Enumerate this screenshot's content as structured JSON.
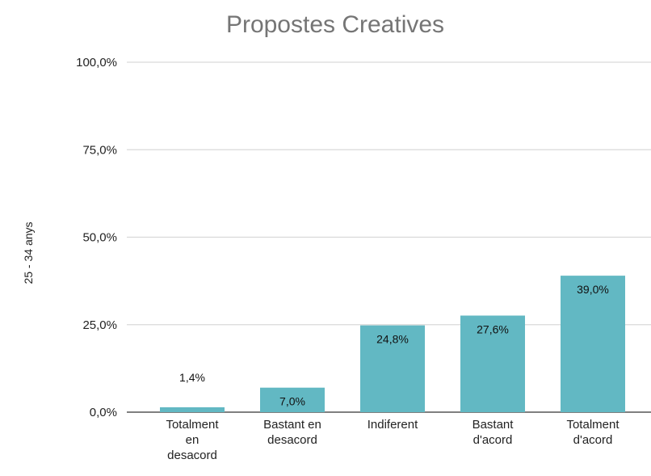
{
  "chart_data": {
    "type": "bar",
    "title": "Propostes Creatives",
    "ylabel": "25 - 34 anys",
    "xlabel": "",
    "ylim": [
      0,
      100
    ],
    "yticks": [
      "0,0%",
      "25,0%",
      "50,0%",
      "75,0%",
      "100,0%"
    ],
    "ytick_values": [
      0,
      25,
      50,
      75,
      100
    ],
    "categories": [
      [
        "Totalment",
        "en",
        "desacord"
      ],
      [
        "Bastant en",
        "desacord"
      ],
      [
        "Indiferent"
      ],
      [
        "Bastant",
        "d'acord"
      ],
      [
        "Totalment",
        "d'acord"
      ]
    ],
    "values": [
      1.4,
      7.0,
      24.8,
      27.6,
      39.0
    ],
    "data_labels": [
      "1,4%",
      "7,0%",
      "24,8%",
      "27,6%",
      "39,0%"
    ],
    "bar_color": "#62b8c3",
    "outside_label_color": "#7fc8d1",
    "grid": true,
    "legend": "none"
  }
}
